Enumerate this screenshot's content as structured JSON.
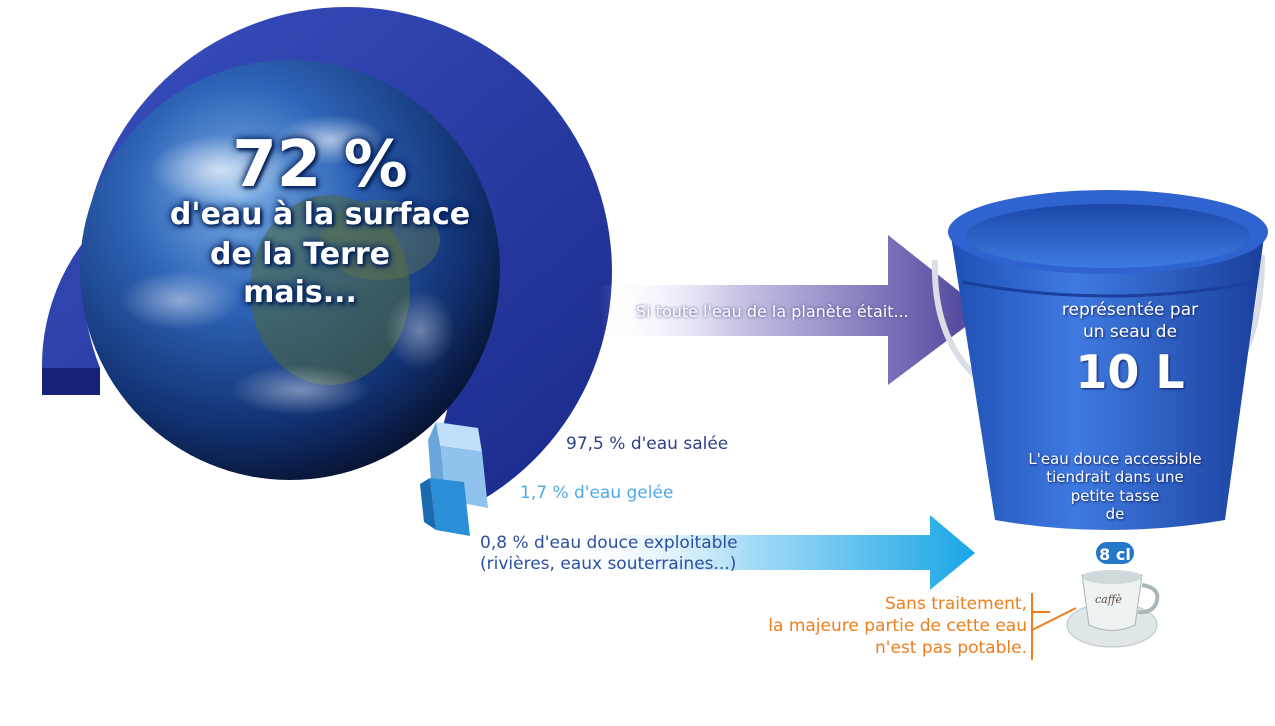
{
  "globe": {
    "percent": "72 %",
    "line1": "d'eau à la surface",
    "line2": "de la Terre",
    "line3": "mais..."
  },
  "legend": {
    "salt": "97,5 % d'eau salée",
    "ice": "1,7 % d'eau gelée",
    "fresh_line1": "0,8 % d'eau douce exploitable",
    "fresh_line2": "(rivières, eaux souterraines...)"
  },
  "arrow_text": "Si toute l'eau de la planète était...",
  "bucket": {
    "line1": "représentée par",
    "line2": "un seau de",
    "volume": "10 L",
    "line3": "L'eau douce accessible",
    "line4": "tiendrait dans une",
    "line5": "petite tasse",
    "line6": "de"
  },
  "cup": {
    "badge": "8 cl",
    "label": "caffè"
  },
  "warning": {
    "line1": "Sans traitement,",
    "line2": "la majeure partie de cette eau",
    "line3": "n'est pas potable."
  },
  "shares": {
    "salt_percent": 97.5,
    "ice_percent": 1.7,
    "fresh_percent": 0.8
  },
  "colors": {
    "salt": "#2a3a9a",
    "ice": "#8fc3ee",
    "fresh": "#2a8fd6",
    "warning": "#ef7d1a",
    "bucket": "#2f63d0"
  }
}
